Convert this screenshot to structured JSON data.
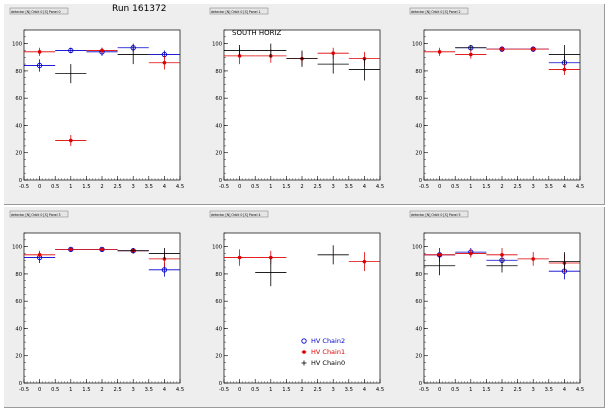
{
  "run_label": "Run 161372",
  "colors": {
    "hv_chain2": "#0000cc",
    "hv_chain1": "#dd0000",
    "hv_chain0": "#000000",
    "pad_bg": "#eeeeee",
    "frame_bg": "#ffffff",
    "box_bg": "#e6e6e6"
  },
  "chart_data": [
    {
      "type": "scatter",
      "pad": "top-left",
      "title": "detector [N] Orbit 0 [S] Panel 0",
      "annotation": "",
      "xlim": [
        -0.5,
        4.5
      ],
      "ylim": [
        0,
        110
      ],
      "xticks": [
        "-0.5",
        "0",
        "0.5",
        "1",
        "1.5",
        "2",
        "2.5",
        "3",
        "3.5",
        "4",
        "4.5"
      ],
      "yticks": [
        "0",
        "20",
        "40",
        "60",
        "80",
        "100"
      ],
      "series": [
        {
          "name": "HV Chain2",
          "marker": "circle",
          "color": "#0000cc",
          "points": [
            [
              0,
              84,
              4.5
            ],
            [
              1,
              95,
              2
            ],
            [
              2,
              94,
              3
            ],
            [
              3,
              97,
              3
            ],
            [
              4,
              92,
              3
            ]
          ]
        },
        {
          "name": "HV Chain1",
          "marker": "star",
          "color": "#dd0000",
          "points": [
            [
              0,
              94,
              3
            ],
            [
              1,
              29,
              4
            ],
            [
              2,
              95,
              2
            ],
            [
              4,
              86,
              5
            ]
          ]
        },
        {
          "name": "HV Chain0",
          "marker": "cross",
          "color": "#000000",
          "points": [
            [
              1,
              78,
              7
            ],
            [
              3,
              92,
              7
            ]
          ]
        }
      ]
    },
    {
      "type": "scatter",
      "pad": "top-middle",
      "title": "detector [N] Orbit 0 [S] Panel 1",
      "annotation": "SOUTH HORIZ",
      "xlim": [
        -0.5,
        4.5
      ],
      "ylim": [
        0,
        110
      ],
      "xticks": [
        "-0.5",
        "0",
        "0.5",
        "1",
        "1.5",
        "2",
        "2.5",
        "3",
        "3.5",
        "4",
        "4.5"
      ],
      "yticks": [
        "0",
        "20",
        "40",
        "60",
        "80",
        "100"
      ],
      "series": [
        {
          "name": "HV Chain2",
          "marker": "circle",
          "color": "#0000cc",
          "points": []
        },
        {
          "name": "HV Chain1",
          "marker": "star",
          "color": "#dd0000",
          "points": [
            [
              0,
              91,
              6
            ],
            [
              1,
              91,
              5
            ],
            [
              2,
              89,
              5
            ],
            [
              3,
              93,
              4
            ],
            [
              4,
              89,
              5
            ]
          ]
        },
        {
          "name": "HV Chain0",
          "marker": "cross",
          "color": "#000000",
          "points": [
            [
              0,
              95,
              4
            ],
            [
              1,
              95,
              5
            ],
            [
              2,
              89,
              6
            ],
            [
              3,
              85,
              7
            ],
            [
              4,
              81,
              8
            ]
          ]
        }
      ]
    },
    {
      "type": "scatter",
      "pad": "top-right",
      "title": "detector [N] Orbit 0 [S] Panel 2",
      "annotation": "",
      "xlim": [
        -0.5,
        4.5
      ],
      "ylim": [
        0,
        110
      ],
      "xticks": [
        "-0.5",
        "0",
        "0.5",
        "1",
        "1.5",
        "2",
        "2.5",
        "3",
        "3.5",
        "4",
        "4.5"
      ],
      "yticks": [
        "0",
        "20",
        "40",
        "60",
        "80",
        "100"
      ],
      "series": [
        {
          "name": "HV Chain2",
          "marker": "circle",
          "color": "#0000cc",
          "points": [
            [
              1,
              97,
              2
            ],
            [
              2,
              96,
              2
            ],
            [
              3,
              96,
              2
            ],
            [
              4,
              86,
              5
            ]
          ]
        },
        {
          "name": "HV Chain1",
          "marker": "star",
          "color": "#dd0000",
          "points": [
            [
              0,
              94,
              3
            ],
            [
              1,
              92,
              3
            ],
            [
              2,
              96,
              2
            ],
            [
              3,
              96,
              2
            ],
            [
              4,
              81,
              4
            ]
          ]
        },
        {
          "name": "HV Chain0",
          "marker": "cross",
          "color": "#000000",
          "points": [
            [
              1,
              97,
              2
            ],
            [
              4,
              92,
              7
            ]
          ]
        }
      ]
    },
    {
      "type": "scatter",
      "pad": "bottom-left",
      "title": "detector [N] Orbit 0 [S] Panel 3",
      "annotation": "",
      "xlim": [
        -0.5,
        4.5
      ],
      "ylim": [
        0,
        110
      ],
      "xticks": [
        "-0.5",
        "0",
        "0.5",
        "1",
        "1.5",
        "2",
        "2.5",
        "3",
        "3.5",
        "4",
        "4.5"
      ],
      "yticks": [
        "0",
        "20",
        "40",
        "60",
        "80",
        "100"
      ],
      "series": [
        {
          "name": "HV Chain2",
          "marker": "circle",
          "color": "#0000cc",
          "points": [
            [
              0,
              92,
              4
            ],
            [
              1,
              98,
              1
            ],
            [
              2,
              98,
              1
            ],
            [
              3,
              97,
              1
            ],
            [
              4,
              83,
              5
            ]
          ]
        },
        {
          "name": "HV Chain1",
          "marker": "star",
          "color": "#dd0000",
          "points": [
            [
              0,
              94,
              3
            ],
            [
              1,
              98,
              1
            ],
            [
              2,
              98,
              1
            ],
            [
              3,
              97,
              2
            ],
            [
              4,
              91,
              6
            ]
          ]
        },
        {
          "name": "HV Chain0",
          "marker": "cross",
          "color": "#000000",
          "points": [
            [
              3,
              97,
              2
            ],
            [
              4,
              95,
              4
            ]
          ]
        }
      ]
    },
    {
      "type": "scatter",
      "pad": "bottom-middle",
      "title": "detector [N] Orbit 0 [S] Panel 4",
      "annotation": "",
      "xlim": [
        -0.5,
        4.5
      ],
      "ylim": [
        0,
        110
      ],
      "xticks": [
        "-0.5",
        "0",
        "0.5",
        "1",
        "1.5",
        "2",
        "2.5",
        "3",
        "3.5",
        "4",
        "4.5"
      ],
      "yticks": [
        "0",
        "20",
        "40",
        "60",
        "80",
        "100"
      ],
      "legend": {
        "placement": "bottom-right",
        "entries": [
          "HV Chain2",
          "HV Chain1",
          "HV Chain0"
        ]
      },
      "series": [
        {
          "name": "HV Chain2",
          "marker": "circle",
          "color": "#0000cc",
          "points": []
        },
        {
          "name": "HV Chain1",
          "marker": "star",
          "color": "#dd0000",
          "points": [
            [
              0,
              92,
              6
            ],
            [
              1,
              92,
              5
            ],
            [
              4,
              89,
              7
            ]
          ]
        },
        {
          "name": "HV Chain0",
          "marker": "cross",
          "color": "#000000",
          "points": [
            [
              1,
              81,
              10
            ],
            [
              3,
              94,
              7
            ]
          ]
        }
      ]
    },
    {
      "type": "scatter",
      "pad": "bottom-right",
      "title": "detector [N] Orbit 0 [S] Panel 5",
      "annotation": "",
      "xlim": [
        -0.5,
        4.5
      ],
      "ylim": [
        0,
        110
      ],
      "xticks": [
        "-0.5",
        "0",
        "0.5",
        "1",
        "1.5",
        "2",
        "2.5",
        "3",
        "3.5",
        "4",
        "4.5"
      ],
      "yticks": [
        "0",
        "20",
        "40",
        "60",
        "80",
        "100"
      ],
      "series": [
        {
          "name": "HV Chain2",
          "marker": "circle",
          "color": "#0000cc",
          "points": [
            [
              0,
              94,
              5
            ],
            [
              1,
              96,
              3
            ],
            [
              2,
              90,
              5
            ],
            [
              4,
              82,
              6
            ]
          ]
        },
        {
          "name": "HV Chain1",
          "marker": "star",
          "color": "#dd0000",
          "points": [
            [
              0,
              94,
              3
            ],
            [
              1,
              95,
              3
            ],
            [
              2,
              94,
              5
            ],
            [
              3,
              91,
              5
            ],
            [
              4,
              88,
              7
            ]
          ]
        },
        {
          "name": "HV Chain0",
          "marker": "cross",
          "color": "#000000",
          "points": [
            [
              0,
              86,
              7
            ],
            [
              2,
              86,
              5
            ],
            [
              4,
              89,
              7
            ]
          ]
        }
      ]
    }
  ]
}
